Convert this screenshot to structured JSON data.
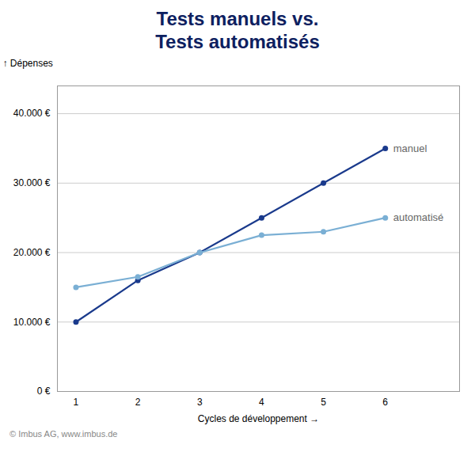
{
  "chart_data": {
    "type": "line",
    "title": "Tests manuels vs.\nTests automatisés",
    "title_color": "#0d2060",
    "xlabel": "Cycles de développement",
    "ylabel": "Dépenses",
    "x": [
      1,
      2,
      3,
      4,
      5,
      6
    ],
    "series": [
      {
        "name": "manuel",
        "color": "#1a3a8c",
        "values": [
          10000,
          16000,
          20000,
          25000,
          30000,
          35000
        ]
      },
      {
        "name": "automatisé",
        "color": "#7aafd4",
        "values": [
          15000,
          16500,
          20000,
          22500,
          23000,
          25000
        ]
      }
    ],
    "marker": "circle",
    "xlim": [
      0.7,
      7.2
    ],
    "xticks": [
      1,
      2,
      3,
      4,
      5,
      6
    ],
    "ylim": [
      0,
      44000
    ],
    "yticks": [
      {
        "value": 0,
        "label": "0 €"
      },
      {
        "value": 10000,
        "label": "10.000 €"
      },
      {
        "value": 20000,
        "label": "20.000 €"
      },
      {
        "value": 30000,
        "label": "30.000 €"
      },
      {
        "value": 40000,
        "label": "40.000 €"
      }
    ],
    "grid": true,
    "annotations": [
      "© Imbus AG, www.imbus.de"
    ]
  }
}
